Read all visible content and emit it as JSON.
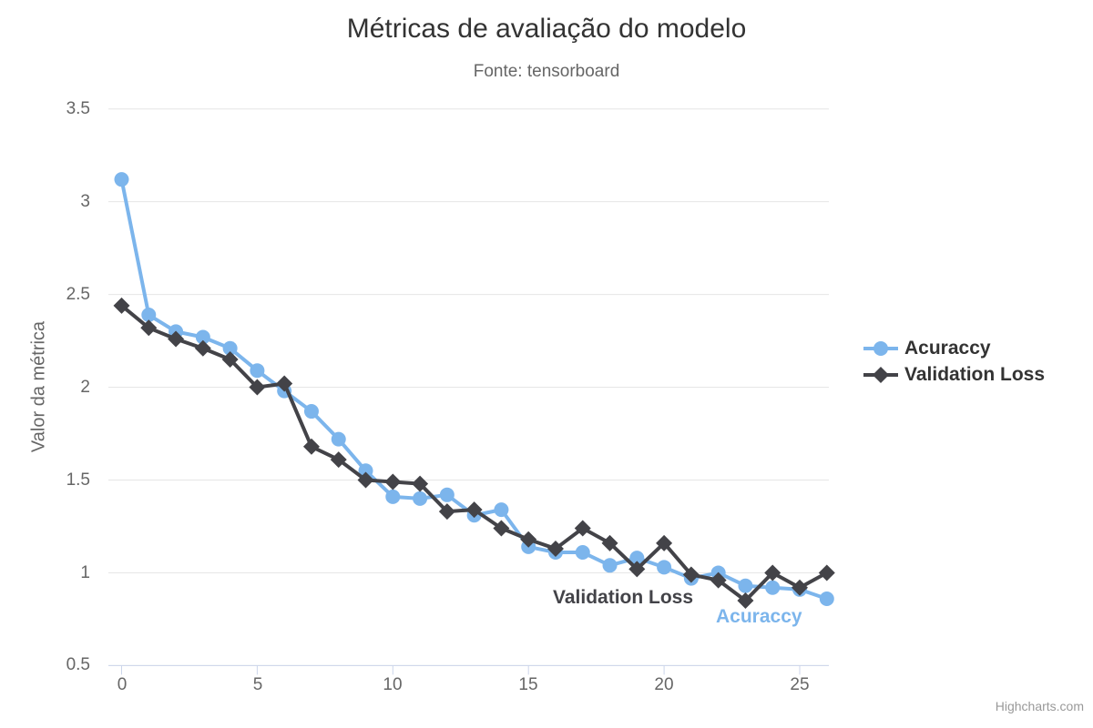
{
  "chart_data": {
    "type": "line",
    "title": "Métricas de avaliação do modelo",
    "subtitle": "Fonte: tensorboard",
    "xlabel": "",
    "ylabel": "Valor da métrica",
    "x": [
      0,
      1,
      2,
      3,
      4,
      5,
      6,
      7,
      8,
      9,
      10,
      11,
      12,
      13,
      14,
      15,
      16,
      17,
      18,
      19,
      20,
      21,
      22,
      23,
      24,
      25,
      26
    ],
    "series": [
      {
        "name": "Acuraccy",
        "color": "#7cb5ec",
        "marker": "circle",
        "values": [
          3.12,
          2.39,
          2.3,
          2.27,
          2.21,
          2.09,
          1.98,
          1.87,
          1.72,
          1.55,
          1.41,
          1.4,
          1.42,
          1.31,
          1.34,
          1.14,
          1.11,
          1.11,
          1.04,
          1.08,
          1.03,
          0.97,
          1.0,
          0.93,
          0.92,
          0.91,
          0.86
        ]
      },
      {
        "name": "Validation Loss",
        "color": "#434348",
        "marker": "diamond",
        "values": [
          2.44,
          2.32,
          2.26,
          2.21,
          2.15,
          2.0,
          2.02,
          1.68,
          1.61,
          1.5,
          1.49,
          1.48,
          1.33,
          1.34,
          1.24,
          1.18,
          1.13,
          1.24,
          1.16,
          1.02,
          1.16,
          0.99,
          0.96,
          0.85,
          1.0,
          0.92,
          1.0
        ]
      }
    ],
    "x_ticks": [
      0,
      5,
      10,
      15,
      20,
      25
    ],
    "y_ticks": [
      3.5,
      3,
      2.5,
      2,
      1.5,
      1,
      0.5
    ],
    "x_tick_labels": [
      "0",
      "5",
      "10",
      "15",
      "20",
      "25"
    ],
    "y_tick_labels": [
      "3.5",
      "3",
      "2.5",
      "2",
      "1.5",
      "1",
      "0.5"
    ],
    "xlim": [
      0,
      26
    ],
    "ylim": [
      0.5,
      3.5
    ],
    "grid": "horizontal",
    "legend_position": "right",
    "colors": {
      "gridline": "#e6e6e6",
      "axis_line": "#ccd6eb",
      "tick_label": "#666666",
      "title": "#333333",
      "subtitle": "#666666",
      "legend_text": "#333333",
      "credits": "#999999"
    }
  },
  "credits": {
    "label": "Highcharts.com"
  }
}
